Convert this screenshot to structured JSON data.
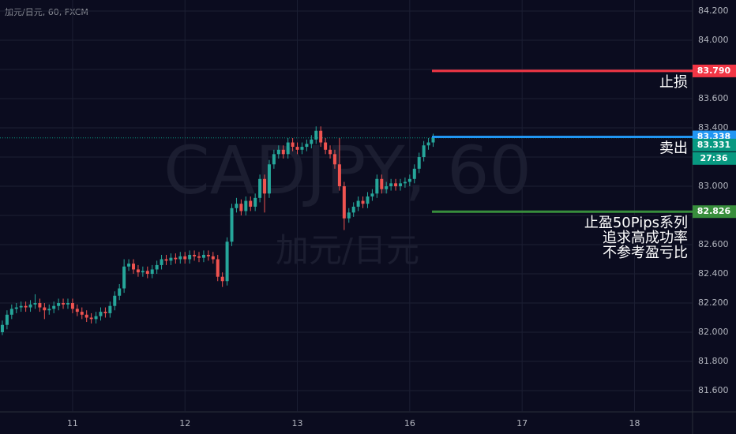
{
  "chart_data": {
    "type": "candlestick",
    "title": "加元/日元, 60, FXCM",
    "watermark": "CADJPY, 60",
    "watermark_subtitle": "加元/日元",
    "up_color": "#26a69a",
    "down_color": "#ef5350",
    "x": [
      0,
      1,
      2,
      3,
      4,
      5,
      6,
      7,
      8,
      9,
      10,
      11,
      12,
      13,
      14,
      15,
      16,
      17,
      18,
      19,
      20,
      21,
      22,
      23,
      24,
      25,
      26,
      27,
      28,
      29,
      30,
      31,
      32,
      33,
      34,
      35,
      36,
      37,
      38,
      39,
      40,
      41,
      42,
      43,
      44,
      45,
      46,
      47,
      48,
      49,
      50,
      51,
      52,
      53,
      54,
      55,
      56,
      57,
      58,
      59,
      60,
      61,
      62,
      63,
      64,
      65,
      66,
      67,
      68,
      69,
      70,
      71,
      72,
      73,
      74,
      75,
      76,
      77,
      78,
      79,
      80,
      81,
      82,
      83,
      84,
      85,
      86,
      87,
      88,
      89,
      90,
      91,
      92
    ],
    "open": [
      82.0,
      82.05,
      82.12,
      82.16,
      82.17,
      82.18,
      82.17,
      82.19,
      82.2,
      82.17,
      82.15,
      82.16,
      82.18,
      82.2,
      82.19,
      82.2,
      82.16,
      82.14,
      82.12,
      82.1,
      82.09,
      82.11,
      82.14,
      82.13,
      82.18,
      82.25,
      82.3,
      82.45,
      82.47,
      82.43,
      82.41,
      82.42,
      82.4,
      82.43,
      82.46,
      82.5,
      82.49,
      82.51,
      82.5,
      82.52,
      82.5,
      82.53,
      82.52,
      82.51,
      82.53,
      82.52,
      82.5,
      82.38,
      82.35,
      82.62,
      82.85,
      82.88,
      82.83,
      82.9,
      82.86,
      82.92,
      83.05,
      82.95,
      83.15,
      83.22,
      83.25,
      83.22,
      83.3,
      83.27,
      83.25,
      83.27,
      83.29,
      83.32,
      83.38,
      83.3,
      83.25,
      83.22,
      83.15,
      83.0,
      82.78,
      82.82,
      82.86,
      82.9,
      82.88,
      82.93,
      82.95,
      83.05,
      82.98,
      83.0,
      83.02,
      83.0,
      83.02,
      83.03,
      83.05,
      83.12,
      83.2,
      83.28,
      83.3
    ],
    "high": [
      82.08,
      82.15,
      82.19,
      82.2,
      82.21,
      82.21,
      82.22,
      82.26,
      82.23,
      82.2,
      82.19,
      82.21,
      82.23,
      82.23,
      82.23,
      82.23,
      82.19,
      82.17,
      82.15,
      82.13,
      82.14,
      82.17,
      82.17,
      82.21,
      82.28,
      82.33,
      82.5,
      82.5,
      82.5,
      82.46,
      82.45,
      82.45,
      82.46,
      82.49,
      82.53,
      82.53,
      82.54,
      82.54,
      82.55,
      82.55,
      82.56,
      82.56,
      82.55,
      82.56,
      82.56,
      82.55,
      82.53,
      82.41,
      82.65,
      82.88,
      82.92,
      82.91,
      82.93,
      82.93,
      82.95,
      83.08,
      83.08,
      83.18,
      83.25,
      83.28,
      83.28,
      83.33,
      83.33,
      83.3,
      83.3,
      83.32,
      83.35,
      83.41,
      83.41,
      83.33,
      83.28,
      83.25,
      83.33,
      83.03,
      82.85,
      82.89,
      82.93,
      82.93,
      82.96,
      82.98,
      83.08,
      83.08,
      83.03,
      83.05,
      83.05,
      83.05,
      83.06,
      83.08,
      83.15,
      83.23,
      83.31,
      83.33,
      83.36
    ],
    "low": [
      81.98,
      82.02,
      82.09,
      82.13,
      82.14,
      82.14,
      82.14,
      82.16,
      82.14,
      82.09,
      82.12,
      82.13,
      82.15,
      82.16,
      82.16,
      82.13,
      82.11,
      82.09,
      82.07,
      82.06,
      82.06,
      82.08,
      82.1,
      82.1,
      82.15,
      82.22,
      82.27,
      82.42,
      82.4,
      82.38,
      82.38,
      82.37,
      82.37,
      82.4,
      82.43,
      82.46,
      82.46,
      82.47,
      82.47,
      82.47,
      82.47,
      82.49,
      82.48,
      82.48,
      82.49,
      82.47,
      82.35,
      82.31,
      82.32,
      82.59,
      82.82,
      82.8,
      82.8,
      82.83,
      82.83,
      82.89,
      82.82,
      82.92,
      83.12,
      83.19,
      83.19,
      83.19,
      83.24,
      83.22,
      83.22,
      83.24,
      83.26,
      83.29,
      83.27,
      83.22,
      83.19,
      83.12,
      82.97,
      82.7,
      82.75,
      82.79,
      82.83,
      82.85,
      82.85,
      82.9,
      82.92,
      82.95,
      82.95,
      82.97,
      82.97,
      82.97,
      82.99,
      83.0,
      83.02,
      83.09,
      83.17,
      83.25,
      83.27
    ],
    "close": [
      82.05,
      82.12,
      82.16,
      82.17,
      82.18,
      82.17,
      82.19,
      82.2,
      82.17,
      82.15,
      82.16,
      82.18,
      82.2,
      82.19,
      82.2,
      82.16,
      82.14,
      82.12,
      82.1,
      82.09,
      82.11,
      82.14,
      82.13,
      82.18,
      82.25,
      82.3,
      82.45,
      82.47,
      82.43,
      82.41,
      82.42,
      82.4,
      82.43,
      82.46,
      82.5,
      82.49,
      82.51,
      82.5,
      82.52,
      82.5,
      82.53,
      82.52,
      82.51,
      82.53,
      82.52,
      82.5,
      82.38,
      82.35,
      82.62,
      82.85,
      82.88,
      82.83,
      82.9,
      82.86,
      82.92,
      83.05,
      82.95,
      83.15,
      83.22,
      83.25,
      83.22,
      83.3,
      83.27,
      83.25,
      83.27,
      83.29,
      83.32,
      83.38,
      83.3,
      83.25,
      83.22,
      83.15,
      83.0,
      82.78,
      82.82,
      82.86,
      82.9,
      82.88,
      82.93,
      82.95,
      83.05,
      82.98,
      83.0,
      83.02,
      83.0,
      83.02,
      83.03,
      83.05,
      83.12,
      83.2,
      83.28,
      83.3,
      83.33
    ],
    "xlim": [
      -0.5,
      147.4
    ],
    "xticks": [
      {
        "value": 15,
        "label": "11"
      },
      {
        "value": 39,
        "label": "12"
      },
      {
        "value": 63,
        "label": "13"
      },
      {
        "value": 87,
        "label": "16"
      },
      {
        "value": 111,
        "label": "17"
      },
      {
        "value": 135,
        "label": "18"
      }
    ],
    "ylim": [
      81.454,
      84.276
    ],
    "yticks": [
      {
        "value": 81.6,
        "label": "81.600"
      },
      {
        "value": 81.8,
        "label": "81.800"
      },
      {
        "value": 82.0,
        "label": "82.000"
      },
      {
        "value": 82.2,
        "label": "82.200"
      },
      {
        "value": 82.4,
        "label": "82.400"
      },
      {
        "value": 82.6,
        "label": "82.600"
      },
      {
        "value": 82.8,
        "label": "82.800"
      },
      {
        "value": 83.0,
        "label": "83.000"
      },
      {
        "value": 83.2,
        "label": "83.200"
      },
      {
        "value": 83.4,
        "label": "83.400"
      },
      {
        "value": 83.6,
        "label": "83.600"
      },
      {
        "value": 83.8,
        "label": "83.800"
      },
      {
        "value": 84.0,
        "label": "84.000"
      },
      {
        "value": 84.2,
        "label": "84.200"
      }
    ],
    "grid": true,
    "levels": [
      {
        "value": 83.79,
        "value_label": "83.790",
        "color": "#f23645",
        "note": [
          "止损"
        ]
      },
      {
        "value": 83.338,
        "value_label": "83.338",
        "color": "#2196f3",
        "note": [
          "卖出"
        ]
      },
      {
        "value": 82.826,
        "value_label": "82.826",
        "color": "#388e3c",
        "note": [
          "止盈50Pips系列",
          "追求高成功率",
          "不参考盈亏比"
        ]
      }
    ],
    "current_price": {
      "value": 83.331,
      "value_label": "83.331",
      "countdown": "27:36",
      "color": "#089981"
    }
  }
}
